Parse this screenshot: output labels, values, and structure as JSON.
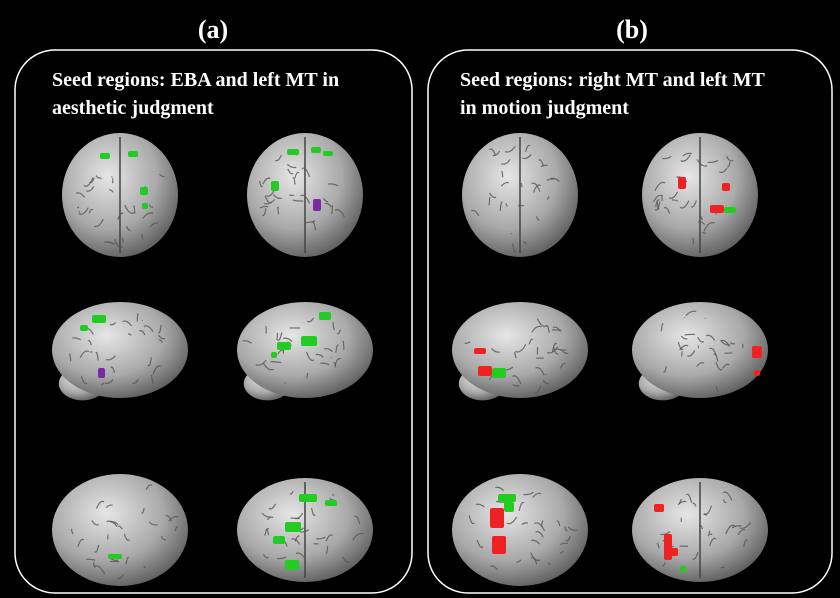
{
  "panels": [
    {
      "label": "(a)",
      "title_lines": [
        "Seed regions: EBA and left MT in",
        "aesthetic judgment"
      ]
    },
    {
      "label": "(b)",
      "title_lines": [
        "Seed regions: right MT and left MT",
        "in motion judgment"
      ]
    }
  ]
}
